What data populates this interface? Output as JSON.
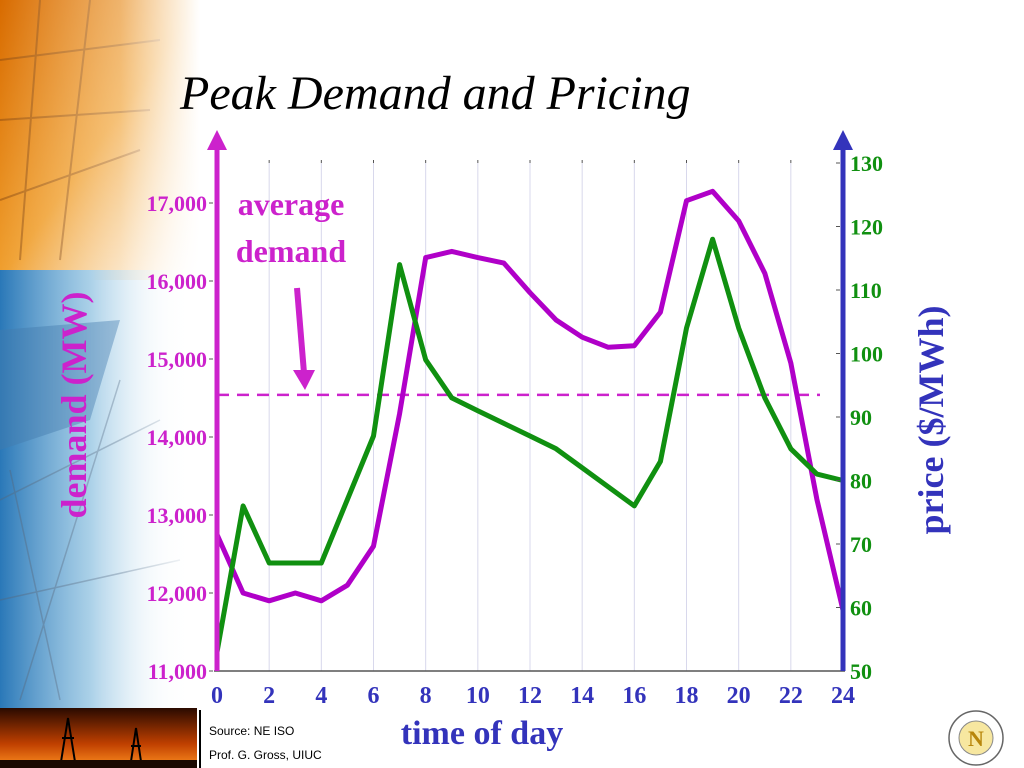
{
  "title": "Peak Demand and Pricing",
  "source": "Source: NE ISO",
  "author": "Prof. G. Gross, UIUC",
  "logo_letter": "N",
  "colors": {
    "demand": "#b000c8",
    "price": "#109010",
    "left_axis": "#cc22cc",
    "right_axis": "#3333bb",
    "price_ticks": "#109010",
    "average": "#cc22cc"
  },
  "chart_data": {
    "type": "line",
    "x": [
      0,
      1,
      2,
      3,
      4,
      5,
      6,
      7,
      8,
      9,
      10,
      11,
      12,
      13,
      14,
      15,
      16,
      17,
      18,
      19,
      20,
      21,
      22,
      23,
      24
    ],
    "xlabel": "time of day",
    "xticks": [
      0,
      2,
      4,
      6,
      8,
      10,
      12,
      14,
      16,
      18,
      20,
      22,
      24
    ],
    "xlim": [
      0,
      24
    ],
    "ylabel_left": "demand  (MW)",
    "ylim_left": [
      11000,
      17500
    ],
    "yticks_left": [
      11000,
      12000,
      13000,
      14000,
      15000,
      16000,
      17000
    ],
    "ytick_labels_left": [
      "11,000",
      "12,000",
      "13,000",
      "14,000",
      "15,000",
      "16,000",
      "17,000"
    ],
    "ylabel_right": "price  ($/MWh)",
    "ylim_right": [
      50,
      130
    ],
    "yticks_right": [
      50,
      60,
      70,
      80,
      90,
      100,
      110,
      120,
      130
    ],
    "series": [
      {
        "name": "demand",
        "axis": "left",
        "values": [
          12750,
          12000,
          11900,
          12000,
          11900,
          12100,
          12600,
          14300,
          16300,
          16380,
          16300,
          16230,
          15850,
          15500,
          15280,
          15150,
          15170,
          15600,
          17030,
          17150,
          16770,
          16100,
          14950,
          13200,
          11780
        ]
      },
      {
        "name": "price",
        "axis": "right",
        "values": [
          53,
          76,
          67,
          67,
          67,
          77,
          87,
          114,
          99,
          93,
          91,
          89,
          87,
          85,
          82,
          79,
          76,
          83,
          104,
          118,
          104,
          93,
          85,
          81,
          80
        ]
      }
    ],
    "annotations": [
      {
        "text_line1": "average",
        "text_line2": "demand",
        "value": 14540,
        "axis": "left",
        "style": "dashed"
      }
    ],
    "grid": true
  }
}
